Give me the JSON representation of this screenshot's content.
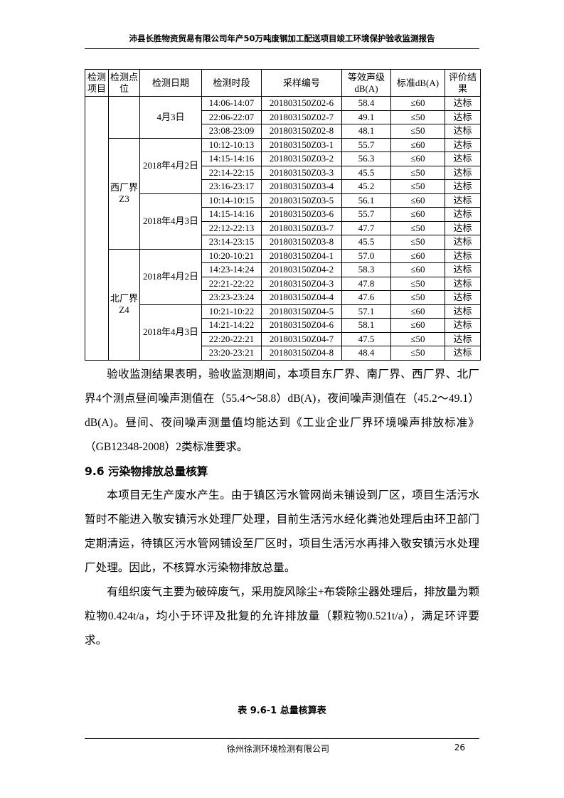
{
  "header": {
    "title": "沛县长胜物资贸易有限公司年产50万吨废钢加工配送项目竣工环境保护验收监测报告"
  },
  "table": {
    "header": [
      "检测项目",
      "检测点位",
      "检测日期",
      "检测时段",
      "采样编号",
      "等效声级dB(A)",
      "标准dB(A)",
      "评价结果"
    ],
    "points": [
      {
        "dates": [
          {
            "date": "4月3日",
            "rows": [
              [
                "14:06-14:07",
                "201803150Z02-6",
                "58.4",
                "≤60",
                "达标"
              ],
              [
                "22:06-22:07",
                "201803150Z02-7",
                "49.1",
                "≤50",
                "达标"
              ],
              [
                "23:08-23:09",
                "201803150Z02-8",
                "48.1",
                "≤50",
                "达标"
              ]
            ]
          }
        ]
      },
      {
        "point": "西厂界Z3",
        "dates": [
          {
            "date": "2018年4月2日",
            "rows": [
              [
                "10:12-10:13",
                "201803150Z03-1",
                "55.7",
                "≤60",
                "达标"
              ],
              [
                "14:15-14:16",
                "201803150Z03-2",
                "56.3",
                "≤60",
                "达标"
              ],
              [
                "22:14-22:15",
                "201803150Z03-3",
                "45.5",
                "≤50",
                "达标"
              ],
              [
                "23:16-23:17",
                "201803150Z03-4",
                "45.2",
                "≤50",
                "达标"
              ]
            ]
          },
          {
            "date": "2018年4月3日",
            "rows": [
              [
                "10:14-10:15",
                "201803150Z03-5",
                "56.1",
                "≤60",
                "达标"
              ],
              [
                "14:15-14:16",
                "201803150Z03-6",
                "55.7",
                "≤60",
                "达标"
              ],
              [
                "22:12-22:13",
                "201803150Z03-7",
                "47.7",
                "≤50",
                "达标"
              ],
              [
                "23:14-23:15",
                "201803150Z03-8",
                "45.5",
                "≤50",
                "达标"
              ]
            ]
          }
        ]
      },
      {
        "point": "北厂界Z4",
        "dates": [
          {
            "date": "2018年4月2日",
            "rows": [
              [
                "10:20-10:21",
                "201803150Z04-1",
                "57.0",
                "≤60",
                "达标"
              ],
              [
                "14:23-14:24",
                "201803150Z04-2",
                "58.3",
                "≤60",
                "达标"
              ],
              [
                "22:21-22:22",
                "201803150Z04-3",
                "47.8",
                "≤50",
                "达标"
              ],
              [
                "23:23-23:24",
                "201803150Z04-4",
                "47.6",
                "≤50",
                "达标"
              ]
            ]
          },
          {
            "date": "2018年4月3日",
            "rows": [
              [
                "10:21-10:22",
                "201803150Z04-5",
                "57.1",
                "≤60",
                "达标"
              ],
              [
                "14:21-14:22",
                "201803150Z04-6",
                "58.1",
                "≤60",
                "达标"
              ],
              [
                "22:20-22:21",
                "201803150Z04-7",
                "47.5",
                "≤50",
                "达标"
              ],
              [
                "23:20-23:21",
                "201803150Z04-8",
                "48.4",
                "≤50",
                "达标"
              ]
            ]
          }
        ]
      }
    ]
  },
  "paragraphs": [
    "验收监测结果表明，验收监测期间，本项目东厂界、南厂界、西厂界、北厂界4个测点昼间噪声测值在（55.4～58.8）dB(A)，夜间噪声测值在（45.2～49.1）dB(A)。昼间、夜间噪声测量值均能达到《工业企业厂界环境噪声排放标准》（GB12348-2008）2类标准要求。"
  ],
  "section": {
    "heading": "9.6 污染物排放总量核算",
    "paragraphs": [
      "本项目无生产废水产生。由于镇区污水管网尚未铺设到厂区，项目生活污水暂时不能进入敬安镇污水处理厂处理，目前生活污水经化粪池处理后由环卫部门定期清运，待镇区污水管网铺设至厂区时，项目生活污水再排入敬安镇污水处理厂处理。因此，不核算水污染物排放总量。",
      "有组织废气主要为破碎废气，采用旋风除尘+布袋除尘器处理后，排放量为颗粒物0.424t/a，均小于环评及批复的允许排放量（颗粒物0.521t/a），满足环评要求。"
    ]
  },
  "caption": "表 9.6-1 总量核算表",
  "footer": {
    "company": "徐州徐测环境检测有限公司",
    "page": "26"
  }
}
